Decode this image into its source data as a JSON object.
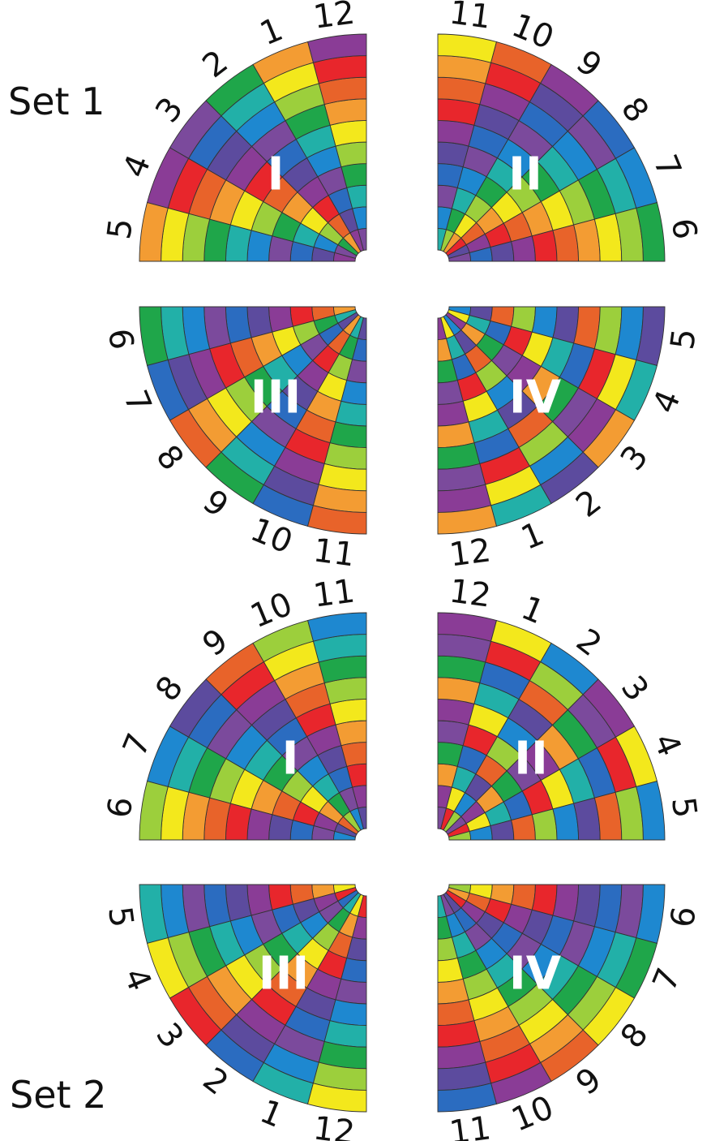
{
  "set_labels": [
    "Set 1",
    "Set 2"
  ],
  "palette": [
    "#7b4a9c",
    "#1e88d0",
    "#22b0a8",
    "#1fa64a",
    "#9ccf3c",
    "#f3e81c",
    "#f39c33",
    "#e8632a",
    "#e8262c",
    "#8a3c96",
    "#5c4b9e",
    "#2b6cc0"
  ],
  "edge_color": "#333333",
  "set1": {
    "wheels": [
      {
        "quadrant": "I",
        "numbers": [
          "12",
          "1",
          "2",
          "3",
          "4",
          "5"
        ]
      },
      {
        "quadrant": "II",
        "numbers": [
          "11",
          "10",
          "9",
          "8",
          "7",
          "6"
        ]
      },
      {
        "quadrant": "III",
        "numbers": [
          "6",
          "7",
          "8",
          "9",
          "10",
          "11"
        ]
      },
      {
        "quadrant": "IV",
        "numbers": [
          "5",
          "4",
          "3",
          "2",
          "1",
          "12"
        ]
      }
    ]
  },
  "set2": {
    "wheels": [
      {
        "quadrant": "I",
        "numbers": [
          "11",
          "10",
          "9",
          "8",
          "7",
          "6"
        ]
      },
      {
        "quadrant": "II",
        "numbers": [
          "12",
          "1",
          "2",
          "3",
          "4",
          "5"
        ]
      },
      {
        "quadrant": "III",
        "numbers": [
          "5",
          "4",
          "3",
          "2",
          "1",
          "12"
        ]
      },
      {
        "quadrant": "IV",
        "numbers": [
          "6",
          "7",
          "8",
          "9",
          "10",
          "11"
        ]
      }
    ]
  }
}
